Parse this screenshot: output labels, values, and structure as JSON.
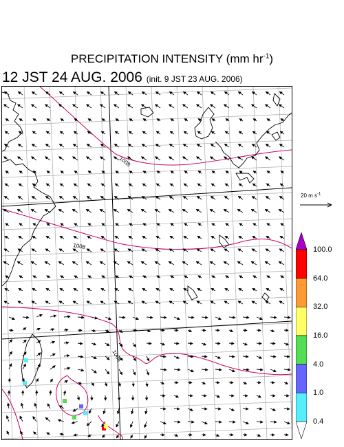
{
  "title": {
    "main": "PRECIPITATION INTENSITY (mm hr",
    "exp": "-1",
    "close": ")",
    "valid_time": "12 JST 24 AUG. 2006",
    "init_time": "(init. 9 JST 23 AUG. 2006)"
  },
  "map": {
    "isobar_labels": [
      "1008",
      "1008",
      "1008"
    ],
    "colors": {
      "coast": "#000000",
      "isobar": "#cc0066",
      "grid": "#aaaaaa",
      "arrow": "#000000"
    }
  },
  "reference_vector": {
    "label": "20 m s",
    "exp": "-1"
  },
  "colorbar": {
    "labels": [
      "100.0",
      "64.0",
      "32.0",
      "16.0",
      "4.0",
      "1.0",
      "0.4"
    ],
    "colors": [
      "#ff0000",
      "#ff9933",
      "#ffff66",
      "#55dd55",
      "#6666ff",
      "#55eeff"
    ],
    "top_arrow": "#aa00cc",
    "bottom_arrow": "#ffffff"
  },
  "precip_cells": [
    {
      "color": "#55eeff"
    },
    {
      "color": "#55eeff"
    },
    {
      "color": "#55dd55"
    },
    {
      "color": "#6666ff"
    },
    {
      "color": "#55eeff"
    },
    {
      "color": "#55dd55"
    },
    {
      "color": "#ff0000"
    },
    {
      "color": "#ffff66"
    }
  ]
}
